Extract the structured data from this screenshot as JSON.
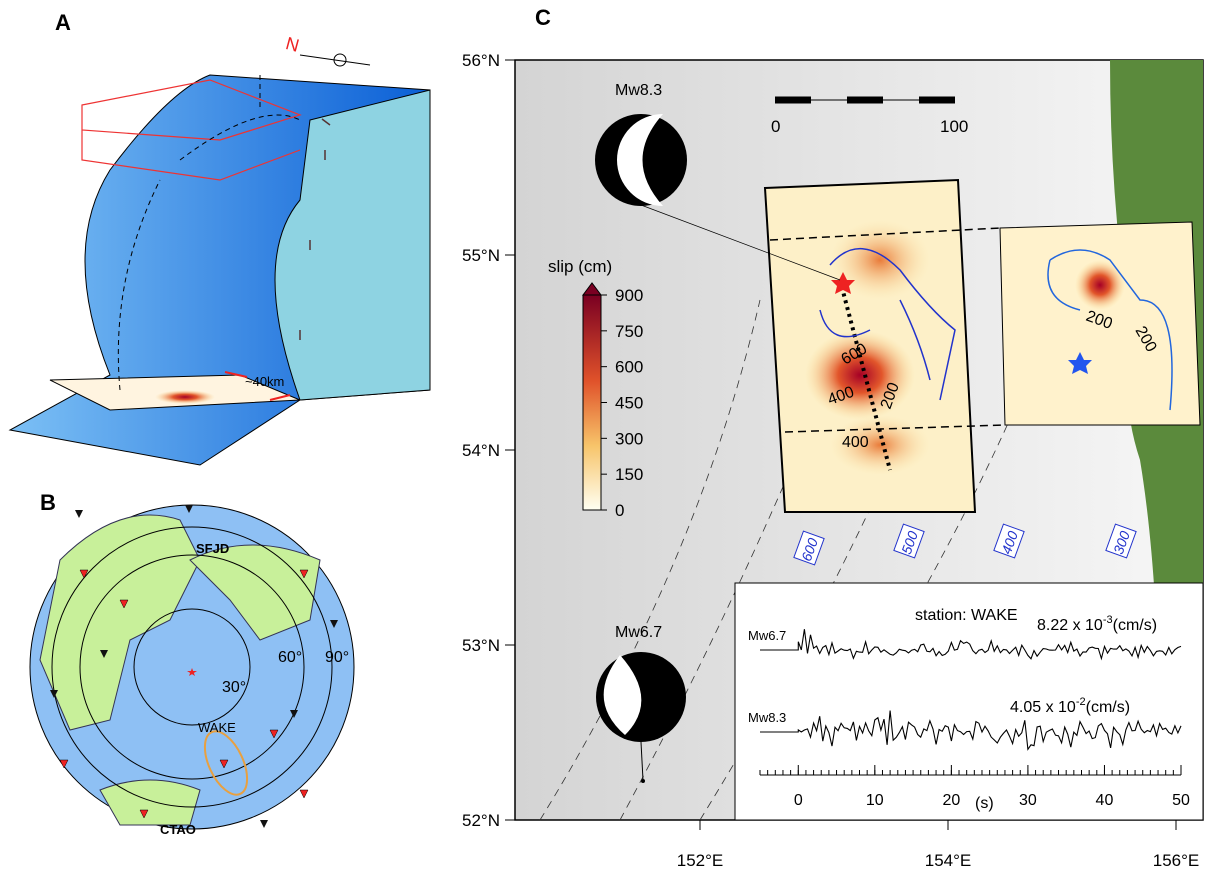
{
  "panel_a": {
    "label": "A",
    "north": "N",
    "width_label": "~40km"
  },
  "panel_b": {
    "label": "B",
    "stations": [
      "SFJD",
      "WAKE",
      "CTAO"
    ],
    "ring_labels": [
      "30°",
      "60°",
      "90°"
    ]
  },
  "panel_c": {
    "label": "C",
    "lat_labels": [
      "56°N",
      "55°N",
      "54°N",
      "53°N",
      "52°N"
    ],
    "lon_labels": [
      "152°E",
      "154°E",
      "156°E"
    ],
    "mainshock": "Mw8.3",
    "aftershock": "Mw6.7",
    "scale_labels": [
      "0",
      "100"
    ],
    "colorbar": {
      "title": "slip (cm)",
      "lim": [
        0,
        900
      ],
      "ticks": [
        900,
        750,
        600,
        450,
        300,
        150,
        0
      ]
    },
    "slip_contours": [
      "600",
      "400",
      "200",
      "400"
    ],
    "inset_contours": [
      "200",
      "200"
    ],
    "depth_contours": [
      "600",
      "500",
      "400",
      "300"
    ],
    "waveform": {
      "station": "station: WAKE",
      "traces": [
        {
          "name": "Mw6.7",
          "amplitude": "8.22 x 10",
          "exponent": "-3",
          "unit": "(cm/s)"
        },
        {
          "name": "Mw8.3",
          "amplitude": "4.05 x 10",
          "exponent": "-2",
          "unit": "(cm/s)"
        }
      ],
      "xlim": [
        -5,
        50
      ],
      "xticks": [
        0,
        10,
        20,
        30,
        40,
        50
      ],
      "xunit": "(s)"
    }
  }
}
